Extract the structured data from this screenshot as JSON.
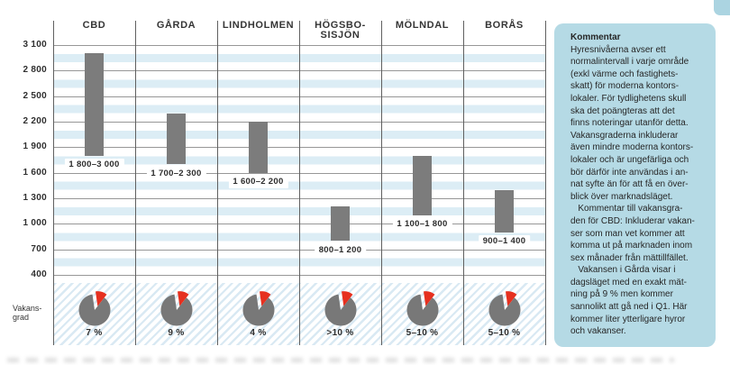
{
  "chart_data": {
    "type": "bar",
    "variant": "vertical-range-bars-with-vacancy-pies",
    "title": "",
    "categories": [
      "CBD",
      "GÅRDA",
      "LINDHOLMEN",
      "HÖGSBO-\nSISJÖN",
      "MÖLNDAL",
      "BORÅS"
    ],
    "series": [
      {
        "name": "hyresniva-intervall",
        "ranges": [
          [
            1800,
            3000
          ],
          [
            1700,
            2300
          ],
          [
            1600,
            2200
          ],
          [
            800,
            1200
          ],
          [
            1100,
            1800
          ],
          [
            900,
            1400
          ]
        ],
        "range_labels": [
          "1 800–3 000",
          "1 700–2 300",
          "1 600–2 200",
          "800–1 200",
          "1 100–1 800",
          "900–1 400"
        ]
      },
      {
        "name": "vakansgrad",
        "values": [
          "7 %",
          "9 %",
          "4 %",
          ">10 %",
          "5–10 %",
          "5–10 %"
        ]
      }
    ],
    "ylim": [
      400,
      3100
    ],
    "ytick_values": [
      3100,
      2800,
      2500,
      2200,
      1900,
      1600,
      1300,
      1000,
      700,
      400
    ],
    "ytick_labels": [
      "3 100",
      "2 800",
      "2 500",
      "2 200",
      "1 900",
      "1 600",
      "1 300",
      "1 000",
      "700",
      "400"
    ],
    "grid": true,
    "legend": "none",
    "row_label": "Vakans-\ngrad"
  },
  "comment": {
    "title": "Kommentar",
    "lines": [
      "Hyresnivåerna avser ett",
      "normalintervall i varje område",
      "(exkl värme och fastighets-",
      "skatt) för moderna kontors-",
      "lokaler. För tydlighetens skull",
      "ska det poängteras att det",
      "finns noteringar utanför detta.",
      "Vakansgraderna inkluderar",
      "även mindre moderna kontors-",
      "lokaler och är ungefärliga och",
      "bör därför inte användas i an-",
      "nat syfte än för att få en över-",
      "blick över marknadsläget.",
      "   Kommentar till vakansgra-",
      "den för CBD: Inkluderar vakan-",
      "ser som man vet kommer att",
      "komma ut på marknaden inom",
      "sex månader från mättillfället.",
      "   Vakansen i Gårda visar i",
      "dagsläget med en exakt mät-",
      "ning på 9 % men kommer",
      "sannolikt att gå ned i Q1. Här",
      "kommer liter ytterligare hyror",
      "och vakanser."
    ]
  },
  "colors": {
    "bar_gray": "#7c7c7c",
    "pie_gray": "#787878",
    "accent_red": "#e6301f",
    "stripe_blue": "#dcedf5",
    "hatch_blue": "#d9e9f3",
    "gridline_gray": "#979797",
    "divider_gray": "#606060",
    "text_dark": "#2c2c2c",
    "comment_bg": "#b5dae5"
  }
}
